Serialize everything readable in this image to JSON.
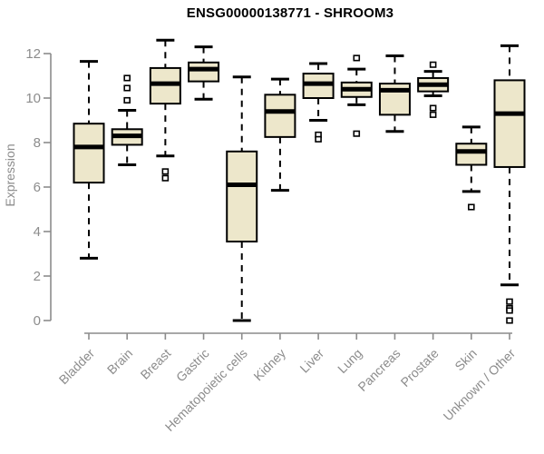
{
  "title": "ENSG00000138771 - SHROOM3",
  "colors": {
    "background": "#FFFFFF",
    "box_fill": "#EDE7CB",
    "box_border": "#000000",
    "median": "#000000",
    "whisker": "#000000",
    "outlier_fill": "#FFFFFF",
    "axis": "#8C8C8C",
    "title_color": "#000000"
  },
  "chart_data": {
    "type": "boxplot",
    "title": "ENSG00000138771 - SHROOM3",
    "xlabel": "",
    "ylabel": "Expression",
    "ylim": [
      0,
      12.8
    ],
    "yticks": [
      0,
      2,
      4,
      6,
      8,
      10,
      12
    ],
    "grid": false,
    "legend": false,
    "categories": [
      "Bladder",
      "Brain",
      "Breast",
      "Gastric",
      "Hematopoietic cells",
      "Kidney",
      "Liver",
      "Lung",
      "Pancreas",
      "Prostate",
      "Skin",
      "Unknown / Other"
    ],
    "series": [
      {
        "category": "Bladder",
        "whisker_low": 2.8,
        "q1": 6.2,
        "median": 7.8,
        "q3": 8.85,
        "whisker_high": 11.65,
        "outliers": []
      },
      {
        "category": "Brain",
        "whisker_low": 7.0,
        "q1": 7.9,
        "median": 8.3,
        "q3": 8.6,
        "whisker_high": 9.45,
        "outliers": [
          10.9,
          10.45,
          9.9
        ]
      },
      {
        "category": "Breast",
        "whisker_low": 7.4,
        "q1": 9.75,
        "median": 10.65,
        "q3": 11.35,
        "whisker_high": 12.6,
        "outliers": [
          6.7,
          6.4
        ]
      },
      {
        "category": "Gastric",
        "whisker_low": 9.95,
        "q1": 10.75,
        "median": 11.3,
        "q3": 11.6,
        "whisker_high": 12.3,
        "outliers": []
      },
      {
        "category": "Hematopoietic cells",
        "whisker_low": 0.0,
        "q1": 3.55,
        "median": 6.1,
        "q3": 7.6,
        "whisker_high": 10.95,
        "outliers": []
      },
      {
        "category": "Kidney",
        "whisker_low": 5.85,
        "q1": 8.25,
        "median": 9.4,
        "q3": 10.15,
        "whisker_high": 10.85,
        "outliers": []
      },
      {
        "category": "Liver",
        "whisker_low": 9.0,
        "q1": 10.0,
        "median": 10.65,
        "q3": 11.1,
        "whisker_high": 11.55,
        "outliers": [
          8.35,
          8.15
        ]
      },
      {
        "category": "Lung",
        "whisker_low": 9.7,
        "q1": 10.05,
        "median": 10.4,
        "q3": 10.7,
        "whisker_high": 11.3,
        "outliers": [
          11.8,
          8.4
        ]
      },
      {
        "category": "Pancreas",
        "whisker_low": 8.5,
        "q1": 9.25,
        "median": 10.35,
        "q3": 10.65,
        "whisker_high": 11.9,
        "outliers": []
      },
      {
        "category": "Prostate",
        "whisker_low": 10.1,
        "q1": 10.3,
        "median": 10.6,
        "q3": 10.9,
        "whisker_high": 11.2,
        "outliers": [
          11.5,
          9.55,
          9.25
        ]
      },
      {
        "category": "Skin",
        "whisker_low": 5.8,
        "q1": 7.0,
        "median": 7.6,
        "q3": 7.95,
        "whisker_high": 8.7,
        "outliers": [
          5.1
        ]
      },
      {
        "category": "Unknown / Other",
        "whisker_low": 1.6,
        "q1": 6.9,
        "median": 9.3,
        "q3": 10.8,
        "whisker_high": 12.35,
        "outliers": [
          0.85,
          0.55,
          0.45,
          0.0
        ]
      }
    ]
  }
}
